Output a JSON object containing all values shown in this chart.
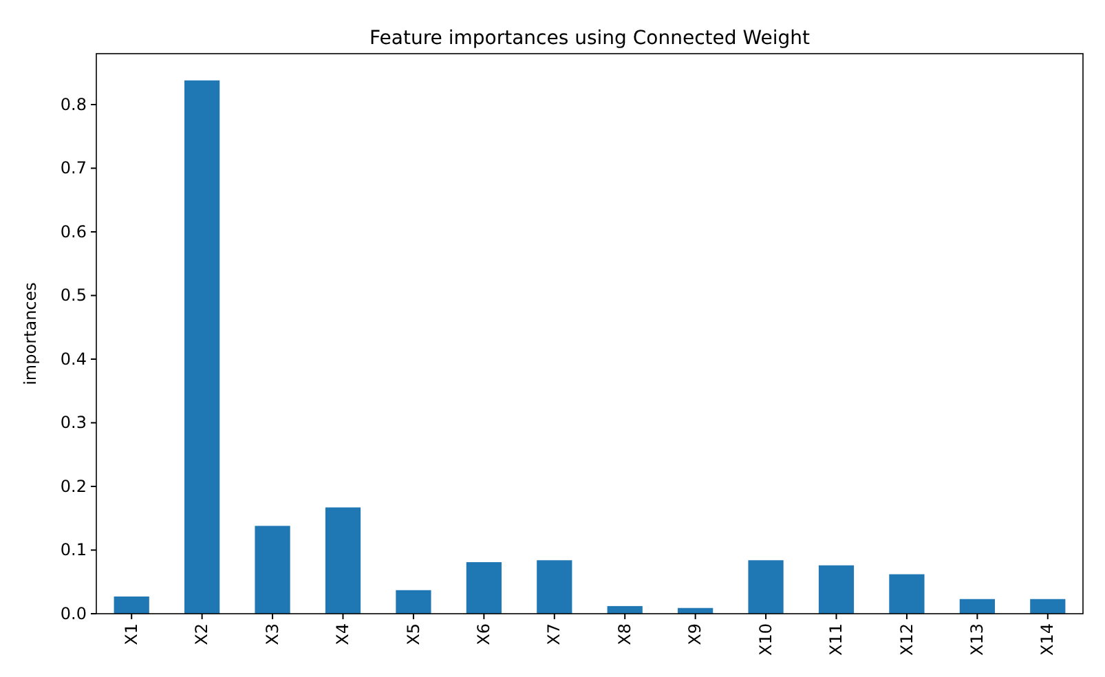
{
  "chart_data": {
    "type": "bar",
    "title": "Feature importances using Connected Weight",
    "ylabel": "importances",
    "categories": [
      "X1",
      "X2",
      "X3",
      "X4",
      "X5",
      "X6",
      "X7",
      "X8",
      "X9",
      "X10",
      "X11",
      "X12",
      "X13",
      "X14"
    ],
    "values": [
      0.027,
      0.838,
      0.138,
      0.167,
      0.037,
      0.081,
      0.084,
      0.012,
      0.009,
      0.084,
      0.076,
      0.062,
      0.023,
      0.023
    ],
    "color": "#1f77b4",
    "ylim": [
      0,
      0.88
    ],
    "yticks": [
      {
        "value": 0,
        "label": "0.0"
      },
      0.1,
      0.2,
      0.3,
      0.4,
      0.5,
      0.6,
      0.7,
      0.8
    ],
    "grid": false
  }
}
